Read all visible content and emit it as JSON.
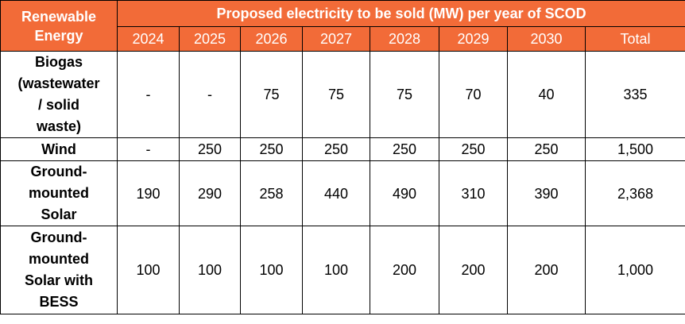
{
  "table": {
    "header_category": "Renewable Energy",
    "header_category_lines": [
      "Renewable",
      "Energy"
    ],
    "header_group": "Proposed electricity to be sold (MW) per year of SCOD",
    "years": [
      "2024",
      "2025",
      "2026",
      "2027",
      "2028",
      "2029",
      "2030"
    ],
    "total_label": "Total",
    "rows": [
      {
        "name": "Biogas (wastewater / solid waste)",
        "name_lines": [
          "Biogas",
          "(wastewater",
          "/ solid",
          "waste)"
        ],
        "values": [
          "-",
          "-",
          "75",
          "75",
          "75",
          "70",
          "40"
        ],
        "total": "335"
      },
      {
        "name": "Wind",
        "name_lines": [
          "Wind"
        ],
        "values": [
          "-",
          "250",
          "250",
          "250",
          "250",
          "250",
          "250"
        ],
        "total": "1,500"
      },
      {
        "name": "Ground-mounted Solar",
        "name_lines": [
          "Ground-",
          "mounted",
          "Solar"
        ],
        "values": [
          "190",
          "290",
          "258",
          "440",
          "490",
          "310",
          "390"
        ],
        "total": "2,368"
      },
      {
        "name": "Ground-mounted Solar with BESS",
        "name_lines": [
          "Ground-",
          "mounted",
          "Solar with",
          "BESS"
        ],
        "values": [
          "100",
          "100",
          "100",
          "100",
          "200",
          "200",
          "200"
        ],
        "total": "1,000"
      }
    ]
  },
  "colors": {
    "header_bg": "#f26b38",
    "header_text": "#ffffff",
    "border": "#000000"
  }
}
